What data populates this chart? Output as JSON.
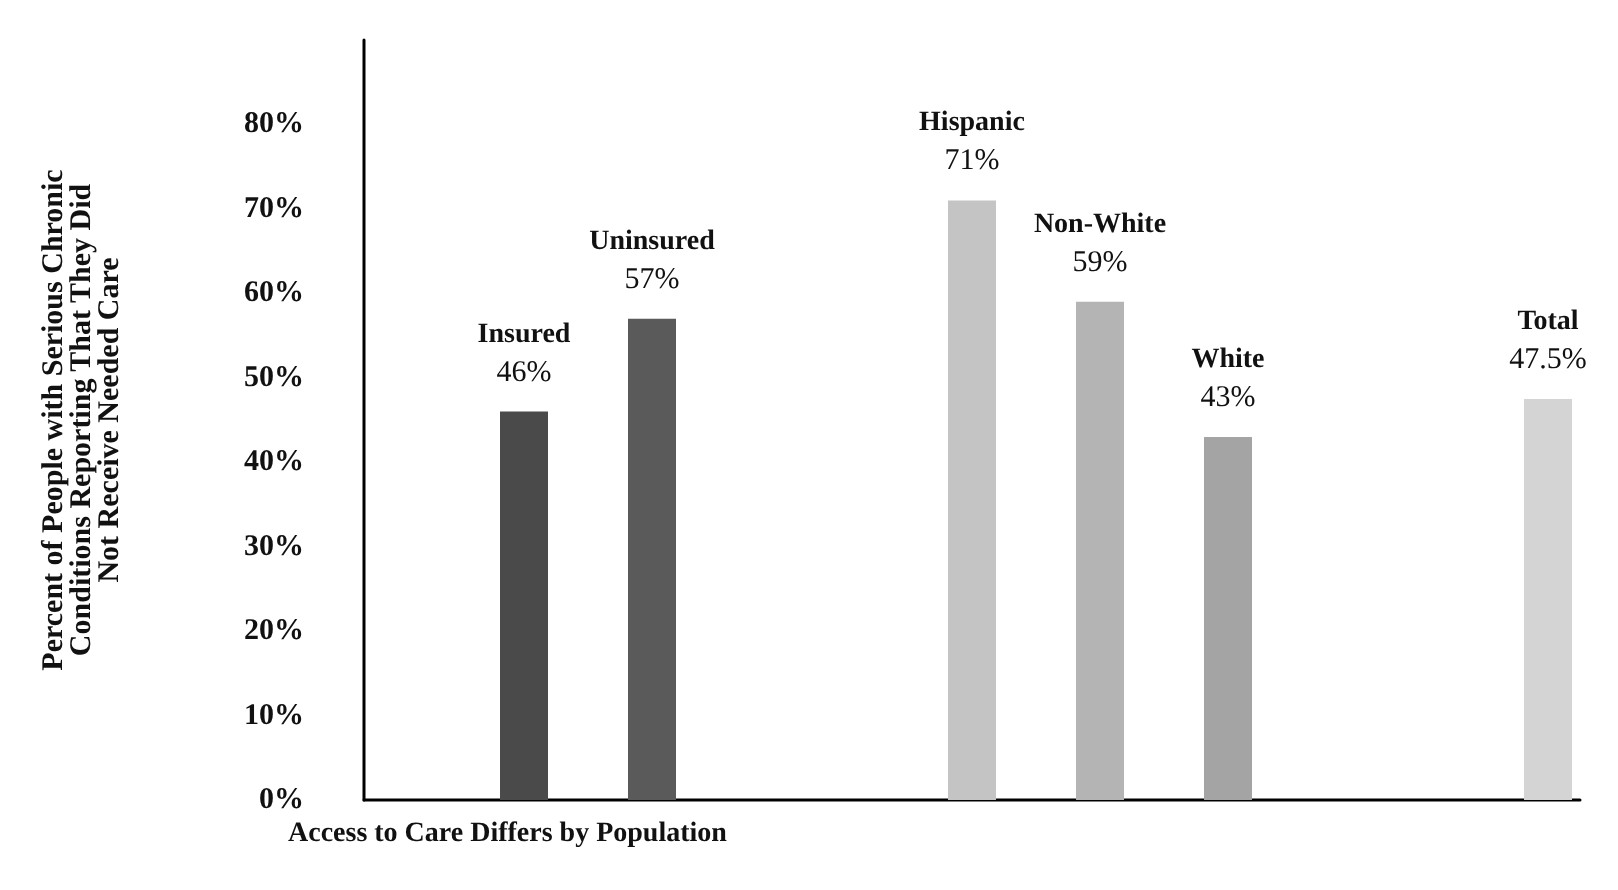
{
  "chart_data": {
    "type": "bar",
    "xlabel": "Access to Care Differs by Population",
    "ylabel": "Percent of People with Serious Chronic\nConditions Reporting That They Did\nNot Receive Needed Care",
    "categories": [
      null,
      null,
      "Insured",
      null,
      "Uninsured",
      null,
      null,
      null,
      null,
      "Hispanic",
      null,
      "Non-White",
      null,
      "White",
      null,
      null,
      null,
      null,
      "Total"
    ],
    "values": [
      null,
      null,
      46,
      null,
      57,
      null,
      null,
      null,
      null,
      71,
      null,
      59,
      null,
      43,
      null,
      null,
      null,
      null,
      47.5
    ],
    "value_labels": [
      null,
      null,
      "46%",
      null,
      "57%",
      null,
      null,
      null,
      null,
      "71%",
      null,
      "59%",
      null,
      "43%",
      null,
      null,
      null,
      null,
      "47.5%"
    ],
    "colors": [
      "#888888",
      "#888888",
      "#4a4a4a",
      "#888888",
      "#5a5a5a",
      "#888888",
      "#888888",
      "#888888",
      "#888888",
      "#c4c4c4",
      "#888888",
      "#b4b4b4",
      "#888888",
      "#a4a4a4",
      "#888888",
      "#888888",
      "#888888",
      "#888888",
      "#d4d4d4"
    ],
    "ylim": [
      0,
      90
    ],
    "yticks": [
      {
        "value": 0,
        "label": "0%"
      },
      {
        "value": 10,
        "label": "10%"
      },
      {
        "value": 20,
        "label": "20%"
      },
      {
        "value": 30,
        "label": "30%"
      },
      {
        "value": 40,
        "label": "40%"
      },
      {
        "value": 50,
        "label": "50%"
      },
      {
        "value": 60,
        "label": "60%"
      },
      {
        "value": 70,
        "label": "70%"
      },
      {
        "value": 80,
        "label": "80%"
      }
    ],
    "tick_labels": "y",
    "grid": false
  }
}
